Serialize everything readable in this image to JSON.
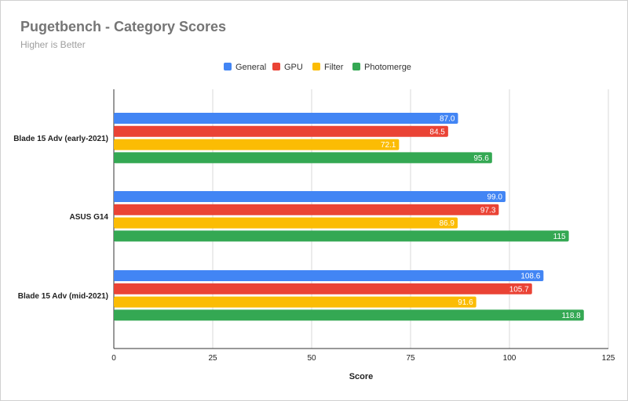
{
  "chart_data": {
    "type": "bar",
    "orientation": "horizontal",
    "title": "Pugetbench - Category Scores",
    "subtitle": "Higher is Better",
    "xlabel": "Score",
    "ylabel": "",
    "xlim": [
      0,
      125
    ],
    "xticks": [
      0,
      25,
      50,
      75,
      100,
      125
    ],
    "grid": true,
    "legend_position": "top",
    "categories": [
      "Blade 15 Adv (early-2021)",
      "ASUS G14",
      "Blade 15 Adv (mid-2021)"
    ],
    "series": [
      {
        "name": "General",
        "color": "#4285f4",
        "values": [
          87.0,
          99.0,
          108.6
        ],
        "labels": [
          "87.0",
          "99.0",
          "108.6"
        ]
      },
      {
        "name": "GPU",
        "color": "#ea4335",
        "values": [
          84.5,
          97.3,
          105.7
        ],
        "labels": [
          "84.5",
          "97.3",
          "105.7"
        ]
      },
      {
        "name": "Filter",
        "color": "#fbbc04",
        "values": [
          72.1,
          86.9,
          91.6
        ],
        "labels": [
          "72.1",
          "86.9",
          "91.6"
        ]
      },
      {
        "name": "Photomerge",
        "color": "#34a853",
        "values": [
          95.6,
          115,
          118.8
        ],
        "labels": [
          "95.6",
          "115",
          "118.8"
        ]
      }
    ]
  }
}
